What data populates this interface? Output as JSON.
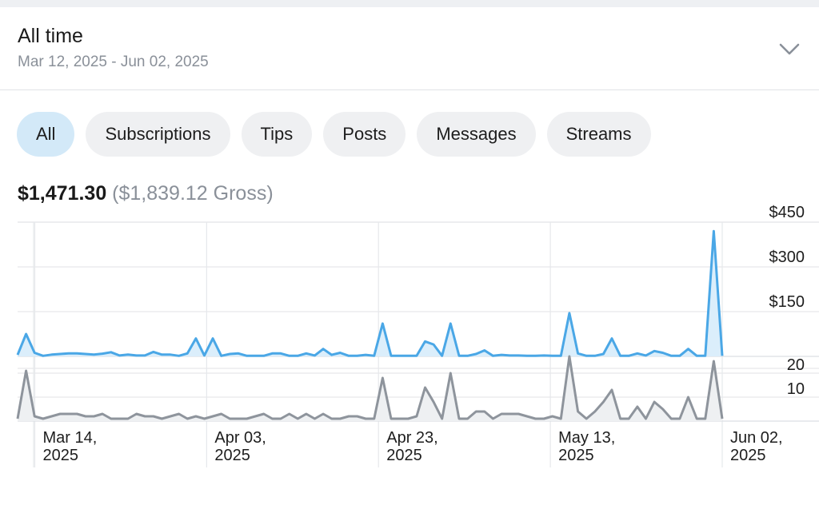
{
  "period": {
    "title": "All time",
    "range": "Mar 12, 2025 - Jun 02, 2025"
  },
  "tabs": [
    {
      "label": "All",
      "active": true
    },
    {
      "label": "Subscriptions",
      "active": false
    },
    {
      "label": "Tips",
      "active": false
    },
    {
      "label": "Posts",
      "active": false
    },
    {
      "label": "Messages",
      "active": false
    },
    {
      "label": "Streams",
      "active": false
    }
  ],
  "totals": {
    "net": "$1,471.30",
    "gross": "($1,839.12 Gross)"
  },
  "icons": {
    "dropdown": "chevron-down-icon"
  },
  "colors": {
    "accent": "#4aa7e6",
    "accent_fill": "#dbeefb",
    "count_line": "#8e949c",
    "count_fill": "#eef0f2",
    "active_tab": "#d3e9f8"
  },
  "chart_data": [
    {
      "type": "area",
      "x_start": "Mar 12, 2025",
      "x_end": "Jun 02, 2025",
      "x_ticks": [
        {
          "date": "Mar 14, 2025",
          "label": [
            "Mar 14,",
            "2025"
          ]
        },
        {
          "date": "Apr 03, 2025",
          "label": [
            "Apr 03,",
            "2025"
          ]
        },
        {
          "date": "Apr 23, 2025",
          "label": [
            "Apr 23,",
            "2025"
          ]
        },
        {
          "date": "May 13, 2025",
          "label": [
            "May 13,",
            "2025"
          ]
        },
        {
          "date": "Jun 02, 2025",
          "label": [
            "Jun 02,",
            "2025"
          ]
        }
      ],
      "y_ticks": [
        {
          "value": 150,
          "label": "$150"
        },
        {
          "value": 300,
          "label": "$300"
        },
        {
          "value": 450,
          "label": "$450"
        }
      ],
      "ylim": [
        0,
        450
      ],
      "grid": true,
      "series": [
        {
          "values": [
            5,
            75,
            12,
            2,
            6,
            8,
            10,
            10,
            8,
            6,
            9,
            14,
            3,
            6,
            3,
            3,
            15,
            6,
            6,
            2,
            10,
            60,
            3,
            60,
            2,
            8,
            10,
            2,
            2,
            2,
            10,
            10,
            2,
            2,
            10,
            3,
            25,
            5,
            12,
            2,
            2,
            5,
            2,
            110,
            2,
            2,
            2,
            2,
            50,
            40,
            2,
            110,
            2,
            2,
            8,
            20,
            2,
            5,
            3,
            3,
            2,
            2,
            3,
            2,
            2,
            145,
            10,
            2,
            2,
            8,
            60,
            2,
            2,
            10,
            3,
            18,
            12,
            2,
            2,
            25,
            2,
            2,
            420,
            2
          ]
        }
      ]
    },
    {
      "type": "area",
      "y_ticks": [
        {
          "value": 10,
          "label": "10"
        },
        {
          "value": 20,
          "label": "20"
        }
      ],
      "ylim": [
        0,
        22
      ],
      "grid": true,
      "series": [
        {
          "values": [
            1,
            21,
            2,
            1,
            2,
            3,
            3,
            3,
            2,
            2,
            3,
            1,
            1,
            1,
            3,
            2,
            2,
            1,
            2,
            3,
            1,
            2,
            1,
            2,
            3,
            1,
            1,
            1,
            2,
            3,
            1,
            1,
            3,
            1,
            3,
            1,
            3,
            1,
            1,
            2,
            2,
            1,
            1,
            18,
            1,
            1,
            1,
            2,
            14,
            8,
            1,
            20,
            1,
            1,
            4,
            4,
            1,
            3,
            3,
            3,
            2,
            1,
            1,
            2,
            1,
            27,
            4,
            1,
            4,
            8,
            13,
            1,
            1,
            6,
            1,
            8,
            5,
            1,
            1,
            10,
            1,
            1,
            25,
            1
          ]
        }
      ]
    }
  ]
}
